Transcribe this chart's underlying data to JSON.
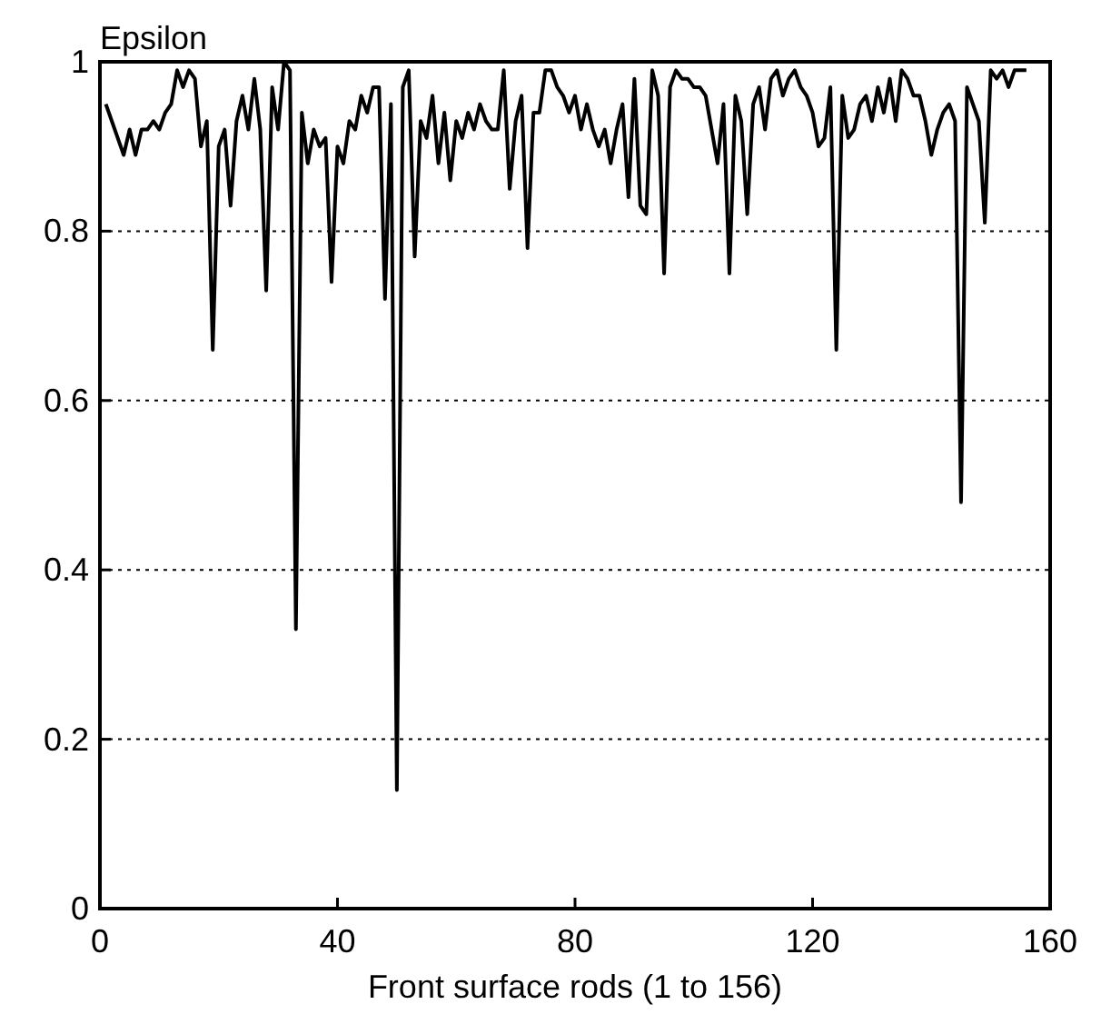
{
  "chart_data": {
    "type": "line",
    "title": "Epsilon",
    "xlabel": "Front surface rods (1 to 156)",
    "x": [
      1,
      2,
      3,
      4,
      5,
      6,
      7,
      8,
      9,
      10,
      11,
      12,
      13,
      14,
      15,
      16,
      17,
      18,
      19,
      20,
      21,
      22,
      23,
      24,
      25,
      26,
      27,
      28,
      29,
      30,
      31,
      32,
      33,
      34,
      35,
      36,
      37,
      38,
      39,
      40,
      41,
      42,
      43,
      44,
      45,
      46,
      47,
      48,
      49,
      50,
      51,
      52,
      53,
      54,
      55,
      56,
      57,
      58,
      59,
      60,
      61,
      62,
      63,
      64,
      65,
      66,
      67,
      68,
      69,
      70,
      71,
      72,
      73,
      74,
      75,
      76,
      77,
      78,
      79,
      80,
      81,
      82,
      83,
      84,
      85,
      86,
      87,
      88,
      89,
      90,
      91,
      92,
      93,
      94,
      95,
      96,
      97,
      98,
      99,
      100,
      101,
      102,
      103,
      104,
      105,
      106,
      107,
      108,
      109,
      110,
      111,
      112,
      113,
      114,
      115,
      116,
      117,
      118,
      119,
      120,
      121,
      122,
      123,
      124,
      125,
      126,
      127,
      128,
      129,
      130,
      131,
      132,
      133,
      134,
      135,
      136,
      137,
      138,
      139,
      140,
      141,
      142,
      143,
      144,
      145,
      146,
      147,
      148,
      149,
      150,
      151,
      152,
      153,
      154,
      155,
      156
    ],
    "series": [
      {
        "color": "#000000",
        "values": [
          0.95,
          0.93,
          0.91,
          0.89,
          0.92,
          0.89,
          0.92,
          0.92,
          0.93,
          0.92,
          0.94,
          0.95,
          0.99,
          0.97,
          0.99,
          0.98,
          0.9,
          0.93,
          0.66,
          0.9,
          0.92,
          0.83,
          0.93,
          0.96,
          0.92,
          0.98,
          0.92,
          0.73,
          0.97,
          0.92,
          1.0,
          0.99,
          0.33,
          0.94,
          0.88,
          0.92,
          0.9,
          0.91,
          0.74,
          0.9,
          0.88,
          0.93,
          0.92,
          0.96,
          0.94,
          0.97,
          0.97,
          0.72,
          0.95,
          0.14,
          0.97,
          0.99,
          0.77,
          0.93,
          0.91,
          0.96,
          0.88,
          0.94,
          0.86,
          0.93,
          0.91,
          0.94,
          0.92,
          0.95,
          0.93,
          0.92,
          0.92,
          0.99,
          0.85,
          0.93,
          0.96,
          0.78,
          0.94,
          0.94,
          0.99,
          0.99,
          0.97,
          0.96,
          0.94,
          0.96,
          0.92,
          0.95,
          0.92,
          0.9,
          0.92,
          0.88,
          0.92,
          0.95,
          0.84,
          0.98,
          0.83,
          0.82,
          0.99,
          0.96,
          0.75,
          0.97,
          0.99,
          0.98,
          0.98,
          0.97,
          0.97,
          0.96,
          0.92,
          0.88,
          0.95,
          0.75,
          0.96,
          0.93,
          0.82,
          0.95,
          0.97,
          0.92,
          0.98,
          0.99,
          0.96,
          0.98,
          0.99,
          0.97,
          0.96,
          0.94,
          0.9,
          0.91,
          0.97,
          0.66,
          0.96,
          0.91,
          0.92,
          0.95,
          0.96,
          0.93,
          0.97,
          0.94,
          0.98,
          0.93,
          0.99,
          0.98,
          0.96,
          0.96,
          0.93,
          0.89,
          0.92,
          0.94,
          0.95,
          0.93,
          0.48,
          0.97,
          0.95,
          0.93,
          0.81,
          0.99,
          0.98,
          0.99,
          0.97,
          0.99,
          0.99,
          0.99
        ]
      }
    ],
    "xlim": [
      0,
      160
    ],
    "xticks": [
      0,
      40,
      80,
      120,
      160
    ],
    "ylim": [
      0,
      1
    ],
    "yticks": [
      0,
      0.2,
      0.4,
      0.6,
      0.8,
      1
    ],
    "grid": "y",
    "line_style": "solid",
    "marker": "none"
  }
}
